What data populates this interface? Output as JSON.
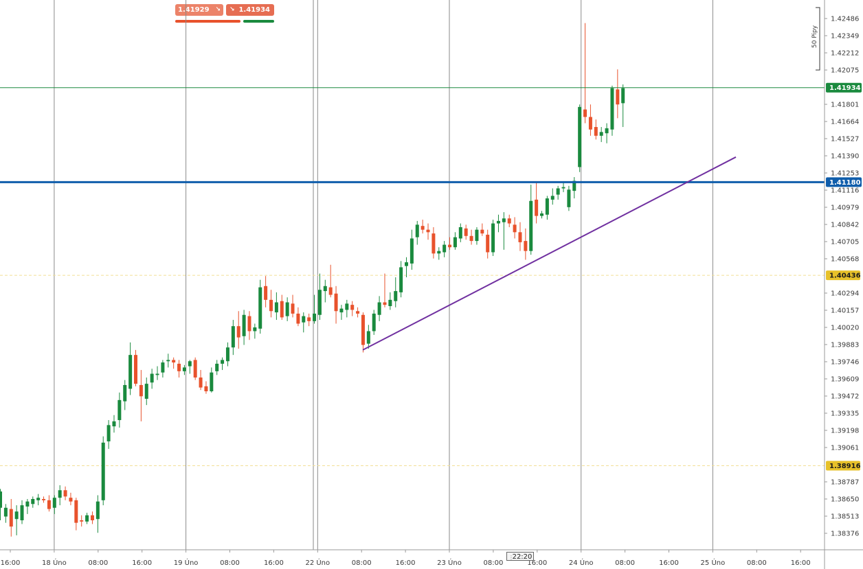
{
  "toolbar": {
    "sell_price": "1.41929",
    "buy_price": "1.41934",
    "sell_arrow_icon": "arrow-down-right-icon",
    "buy_arrow_icon": "arrow-down-right-icon"
  },
  "scale_indicator": {
    "label": "50 Pipy"
  },
  "price_tags": {
    "current_price": "1.41934",
    "horizontal_level": "1.41180",
    "alert_level_1": "1.40436",
    "alert_level_2": "1.38916"
  },
  "time_cursor": {
    "label": "22:20"
  },
  "colors": {
    "bull": "#1a8a3e",
    "bear": "#e8522c",
    "current_price_line": "#1a8a3e",
    "horizontal_level_line": "#0f5dab",
    "trendline": "#7030a0",
    "alert_tag": "#e7c12a",
    "sell_button": "#ec8369",
    "buy_button": "#e66d52"
  },
  "chart_data": {
    "type": "candlestick",
    "symbol_quote_precision": 5,
    "ylim": [
      1.3828,
      1.4265
    ],
    "y_ticks": [
      "1.42486",
      "1.42349",
      "1.42212",
      "1.42075",
      "1.41801",
      "1.41664",
      "1.41527",
      "1.41390",
      "1.41253",
      "1.41116",
      "1.40979",
      "1.40842",
      "1.40705",
      "1.40568",
      "1.40294",
      "1.40157",
      "1.40020",
      "1.39883",
      "1.39746",
      "1.39609",
      "1.39472",
      "1.39335",
      "1.39198",
      "1.39061",
      "1.38787",
      "1.38650",
      "1.38513",
      "1.38376"
    ],
    "x_ticks": [
      "16:00",
      "18 Úno",
      "08:00",
      "16:00",
      "19 Úno",
      "08:00",
      "16:00",
      "22 Úno",
      "08:00",
      "16:00",
      "23 Úno",
      "08:00",
      "16:00",
      "24 Úno",
      "08:00",
      "16:00",
      "25 Úno",
      "08:00",
      "16:00"
    ],
    "horizontal_lines": [
      1.41934,
      1.4118
    ],
    "alert_lines": [
      1.40436,
      1.38916
    ],
    "trendline": {
      "from": [
        "22 Úno 08:00",
        1.3984
      ],
      "to": [
        "25 Úno 06:00",
        1.4138
      ]
    },
    "candles": [
      {
        "o": 1.3858,
        "h": 1.3873,
        "l": 1.3848,
        "c": 1.3871
      },
      {
        "o": 1.3851,
        "h": 1.3861,
        "l": 1.3846,
        "c": 1.3858
      },
      {
        "o": 1.3857,
        "h": 1.3865,
        "l": 1.3835,
        "c": 1.3843
      },
      {
        "o": 1.3849,
        "h": 1.386,
        "l": 1.3836,
        "c": 1.3855
      },
      {
        "o": 1.3848,
        "h": 1.3864,
        "l": 1.3845,
        "c": 1.386
      },
      {
        "o": 1.3859,
        "h": 1.3865,
        "l": 1.3853,
        "c": 1.3863
      },
      {
        "o": 1.3861,
        "h": 1.3867,
        "l": 1.3858,
        "c": 1.3865
      },
      {
        "o": 1.3864,
        "h": 1.3869,
        "l": 1.386,
        "c": 1.3866
      },
      {
        "o": 1.3865,
        "h": 1.3867,
        "l": 1.3862,
        "c": 1.3864
      },
      {
        "o": 1.3864,
        "h": 1.3868,
        "l": 1.3855,
        "c": 1.3857
      },
      {
        "o": 1.3858,
        "h": 1.3868,
        "l": 1.3853,
        "c": 1.3866
      },
      {
        "o": 1.3866,
        "h": 1.3876,
        "l": 1.386,
        "c": 1.3872
      },
      {
        "o": 1.3872,
        "h": 1.3875,
        "l": 1.3864,
        "c": 1.3867
      },
      {
        "o": 1.3866,
        "h": 1.387,
        "l": 1.386,
        "c": 1.3863
      },
      {
        "o": 1.3864,
        "h": 1.3866,
        "l": 1.384,
        "c": 1.3846
      },
      {
        "o": 1.3848,
        "h": 1.3852,
        "l": 1.3843,
        "c": 1.3847
      },
      {
        "o": 1.3847,
        "h": 1.3854,
        "l": 1.3845,
        "c": 1.3852
      },
      {
        "o": 1.3852,
        "h": 1.3855,
        "l": 1.3845,
        "c": 1.3848
      },
      {
        "o": 1.3849,
        "h": 1.3868,
        "l": 1.3838,
        "c": 1.3863
      },
      {
        "o": 1.3864,
        "h": 1.3915,
        "l": 1.386,
        "c": 1.391
      },
      {
        "o": 1.3911,
        "h": 1.3928,
        "l": 1.3905,
        "c": 1.3924
      },
      {
        "o": 1.3923,
        "h": 1.3932,
        "l": 1.3918,
        "c": 1.3927
      },
      {
        "o": 1.3928,
        "h": 1.395,
        "l": 1.3922,
        "c": 1.3944
      },
      {
        "o": 1.3943,
        "h": 1.396,
        "l": 1.3936,
        "c": 1.3956
      },
      {
        "o": 1.3953,
        "h": 1.399,
        "l": 1.3948,
        "c": 1.398
      },
      {
        "o": 1.398,
        "h": 1.3984,
        "l": 1.3955,
        "c": 1.3957
      },
      {
        "o": 1.3956,
        "h": 1.3968,
        "l": 1.3927,
        "c": 1.3947
      },
      {
        "o": 1.3945,
        "h": 1.3962,
        "l": 1.394,
        "c": 1.3957
      },
      {
        "o": 1.3958,
        "h": 1.3969,
        "l": 1.3953,
        "c": 1.3965
      },
      {
        "o": 1.3964,
        "h": 1.3971,
        "l": 1.396,
        "c": 1.3965
      },
      {
        "o": 1.3966,
        "h": 1.3976,
        "l": 1.3962,
        "c": 1.3974
      },
      {
        "o": 1.3975,
        "h": 1.3981,
        "l": 1.397,
        "c": 1.3976
      },
      {
        "o": 1.3976,
        "h": 1.3978,
        "l": 1.3969,
        "c": 1.3974
      },
      {
        "o": 1.3973,
        "h": 1.3976,
        "l": 1.3962,
        "c": 1.3967
      },
      {
        "o": 1.3967,
        "h": 1.3972,
        "l": 1.3964,
        "c": 1.397
      },
      {
        "o": 1.3971,
        "h": 1.3976,
        "l": 1.3965,
        "c": 1.3975
      },
      {
        "o": 1.3976,
        "h": 1.3978,
        "l": 1.396,
        "c": 1.3962
      },
      {
        "o": 1.3962,
        "h": 1.3968,
        "l": 1.3952,
        "c": 1.3954
      },
      {
        "o": 1.3955,
        "h": 1.3959,
        "l": 1.3949,
        "c": 1.3951
      },
      {
        "o": 1.3951,
        "h": 1.397,
        "l": 1.395,
        "c": 1.3966
      },
      {
        "o": 1.3967,
        "h": 1.3976,
        "l": 1.3964,
        "c": 1.3973
      },
      {
        "o": 1.3973,
        "h": 1.3978,
        "l": 1.3968,
        "c": 1.3976
      },
      {
        "o": 1.3975,
        "h": 1.399,
        "l": 1.3971,
        "c": 1.3986
      },
      {
        "o": 1.3986,
        "h": 1.4008,
        "l": 1.398,
        "c": 1.4003
      },
      {
        "o": 1.4003,
        "h": 1.4015,
        "l": 1.3985,
        "c": 1.3994
      },
      {
        "o": 1.3995,
        "h": 1.4016,
        "l": 1.3988,
        "c": 1.4012
      },
      {
        "o": 1.4011,
        "h": 1.4015,
        "l": 1.3992,
        "c": 1.3999
      },
      {
        "o": 1.3999,
        "h": 1.4005,
        "l": 1.3993,
        "c": 1.4002
      },
      {
        "o": 1.4001,
        "h": 1.404,
        "l": 1.3997,
        "c": 1.4034
      },
      {
        "o": 1.4035,
        "h": 1.4043,
        "l": 1.4018,
        "c": 1.4024
      },
      {
        "o": 1.4024,
        "h": 1.4032,
        "l": 1.401,
        "c": 1.4015
      },
      {
        "o": 1.4014,
        "h": 1.403,
        "l": 1.4008,
        "c": 1.4022
      },
      {
        "o": 1.4023,
        "h": 1.4028,
        "l": 1.4008,
        "c": 1.401
      },
      {
        "o": 1.4011,
        "h": 1.4026,
        "l": 1.4007,
        "c": 1.4022
      },
      {
        "o": 1.4021,
        "h": 1.4028,
        "l": 1.401,
        "c": 1.4013
      },
      {
        "o": 1.4013,
        "h": 1.4018,
        "l": 1.4003,
        "c": 1.4005
      },
      {
        "o": 1.4006,
        "h": 1.4014,
        "l": 1.3998,
        "c": 1.4011
      },
      {
        "o": 1.401,
        "h": 1.4013,
        "l": 1.4003,
        "c": 1.4007
      },
      {
        "o": 1.4007,
        "h": 1.4028,
        "l": 1.4005,
        "c": 1.4013
      },
      {
        "o": 1.4012,
        "h": 1.4045,
        "l": 1.4008,
        "c": 1.4032
      },
      {
        "o": 1.4031,
        "h": 1.404,
        "l": 1.4022,
        "c": 1.4035
      },
      {
        "o": 1.4034,
        "h": 1.4052,
        "l": 1.4026,
        "c": 1.4028
      },
      {
        "o": 1.4029,
        "h": 1.4035,
        "l": 1.4005,
        "c": 1.4015
      },
      {
        "o": 1.4014,
        "h": 1.402,
        "l": 1.4008,
        "c": 1.4017
      },
      {
        "o": 1.4016,
        "h": 1.4024,
        "l": 1.401,
        "c": 1.4021
      },
      {
        "o": 1.402,
        "h": 1.4023,
        "l": 1.4011,
        "c": 1.4016
      },
      {
        "o": 1.4015,
        "h": 1.4018,
        "l": 1.401,
        "c": 1.4013
      },
      {
        "o": 1.4012,
        "h": 1.4014,
        "l": 1.3982,
        "c": 1.3988
      },
      {
        "o": 1.3989,
        "h": 1.4004,
        "l": 1.3985,
        "c": 1.3999
      },
      {
        "o": 1.3999,
        "h": 1.4016,
        "l": 1.3996,
        "c": 1.4013
      },
      {
        "o": 1.4012,
        "h": 1.4027,
        "l": 1.4007,
        "c": 1.4022
      },
      {
        "o": 1.4022,
        "h": 1.4045,
        "l": 1.4018,
        "c": 1.402
      },
      {
        "o": 1.4019,
        "h": 1.403,
        "l": 1.4016,
        "c": 1.4024
      },
      {
        "o": 1.4023,
        "h": 1.4042,
        "l": 1.4018,
        "c": 1.4031
      },
      {
        "o": 1.403,
        "h": 1.4055,
        "l": 1.4026,
        "c": 1.405
      },
      {
        "o": 1.4051,
        "h": 1.4058,
        "l": 1.4042,
        "c": 1.4054
      },
      {
        "o": 1.4053,
        "h": 1.408,
        "l": 1.4048,
        "c": 1.4073
      },
      {
        "o": 1.4074,
        "h": 1.4087,
        "l": 1.4068,
        "c": 1.4084
      },
      {
        "o": 1.4083,
        "h": 1.4088,
        "l": 1.4077,
        "c": 1.408
      },
      {
        "o": 1.408,
        "h": 1.4085,
        "l": 1.4072,
        "c": 1.4078
      },
      {
        "o": 1.4077,
        "h": 1.4082,
        "l": 1.4057,
        "c": 1.4061
      },
      {
        "o": 1.4061,
        "h": 1.4066,
        "l": 1.4056,
        "c": 1.4063
      },
      {
        "o": 1.4062,
        "h": 1.4071,
        "l": 1.4058,
        "c": 1.4068
      },
      {
        "o": 1.4068,
        "h": 1.4074,
        "l": 1.4064,
        "c": 1.4066
      },
      {
        "o": 1.4066,
        "h": 1.4078,
        "l": 1.4064,
        "c": 1.4074
      },
      {
        "o": 1.4073,
        "h": 1.4085,
        "l": 1.407,
        "c": 1.4082
      },
      {
        "o": 1.4081,
        "h": 1.4084,
        "l": 1.4072,
        "c": 1.4075
      },
      {
        "o": 1.4075,
        "h": 1.408,
        "l": 1.4068,
        "c": 1.4071
      },
      {
        "o": 1.4071,
        "h": 1.4082,
        "l": 1.4068,
        "c": 1.408
      },
      {
        "o": 1.408,
        "h": 1.4085,
        "l": 1.4075,
        "c": 1.4077
      },
      {
        "o": 1.4076,
        "h": 1.408,
        "l": 1.4057,
        "c": 1.4062
      },
      {
        "o": 1.4062,
        "h": 1.4088,
        "l": 1.4059,
        "c": 1.4085
      },
      {
        "o": 1.4085,
        "h": 1.4092,
        "l": 1.4078,
        "c": 1.4087
      },
      {
        "o": 1.4086,
        "h": 1.4094,
        "l": 1.4064,
        "c": 1.4089
      },
      {
        "o": 1.4089,
        "h": 1.4092,
        "l": 1.4082,
        "c": 1.4085
      },
      {
        "o": 1.4084,
        "h": 1.409,
        "l": 1.4073,
        "c": 1.4078
      },
      {
        "o": 1.4078,
        "h": 1.4086,
        "l": 1.4063,
        "c": 1.407
      },
      {
        "o": 1.4071,
        "h": 1.4081,
        "l": 1.4056,
        "c": 1.4063
      },
      {
        "o": 1.4063,
        "h": 1.4116,
        "l": 1.406,
        "c": 1.4103
      },
      {
        "o": 1.4104,
        "h": 1.4118,
        "l": 1.4085,
        "c": 1.4091
      },
      {
        "o": 1.4091,
        "h": 1.4095,
        "l": 1.4089,
        "c": 1.4093
      },
      {
        "o": 1.4092,
        "h": 1.4107,
        "l": 1.4088,
        "c": 1.4105
      },
      {
        "o": 1.4104,
        "h": 1.4113,
        "l": 1.41,
        "c": 1.4107
      },
      {
        "o": 1.4108,
        "h": 1.4115,
        "l": 1.4104,
        "c": 1.4113
      },
      {
        "o": 1.4113,
        "h": 1.4118,
        "l": 1.411,
        "c": 1.4114
      },
      {
        "o": 1.4098,
        "h": 1.4115,
        "l": 1.4095,
        "c": 1.4112
      },
      {
        "o": 1.4111,
        "h": 1.4122,
        "l": 1.4105,
        "c": 1.4119
      },
      {
        "o": 1.413,
        "h": 1.418,
        "l": 1.4126,
        "c": 1.4178
      },
      {
        "o": 1.4176,
        "h": 1.4245,
        "l": 1.4165,
        "c": 1.417
      },
      {
        "o": 1.417,
        "h": 1.418,
        "l": 1.4155,
        "c": 1.416
      },
      {
        "o": 1.4162,
        "h": 1.4168,
        "l": 1.4152,
        "c": 1.4155
      },
      {
        "o": 1.4155,
        "h": 1.4162,
        "l": 1.415,
        "c": 1.4158
      },
      {
        "o": 1.4157,
        "h": 1.4165,
        "l": 1.4149,
        "c": 1.4161
      },
      {
        "o": 1.416,
        "h": 1.4195,
        "l": 1.4155,
        "c": 1.4193
      },
      {
        "o": 1.4192,
        "h": 1.4208,
        "l": 1.4169,
        "c": 1.418
      },
      {
        "o": 1.4181,
        "h": 1.4196,
        "l": 1.4162,
        "c": 1.4193
      }
    ]
  }
}
